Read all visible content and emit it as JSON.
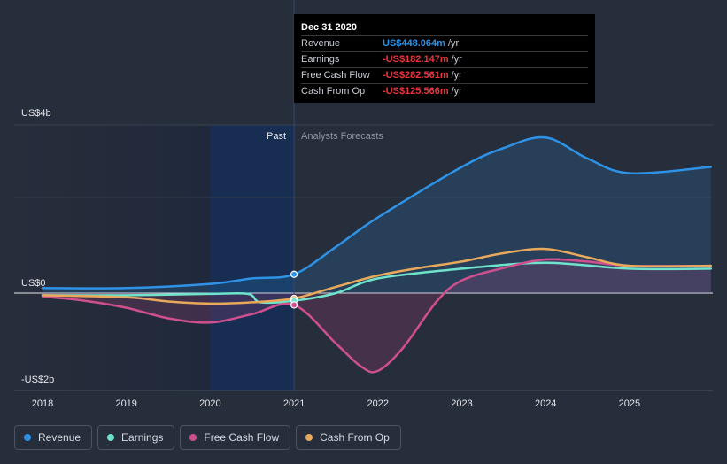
{
  "chart_data": {
    "type": "line",
    "title": "",
    "xlabel": "",
    "ylabel": "",
    "x_ticks": [
      "2018",
      "2019",
      "2020",
      "2021",
      "2022",
      "2023",
      "2024",
      "2025"
    ],
    "y_ticks": [
      "US$4b",
      "US$0",
      "-US$2b"
    ],
    "xlim": [
      2018,
      2025.97
    ],
    "ylim": [
      -2.3,
      4.0
    ],
    "past_label": "Past",
    "forecast_label": "Analysts Forecasts",
    "past_end": 2021,
    "highlight_start": 2020,
    "series": [
      {
        "name": "Revenue",
        "color": "#2e93e6",
        "fill": true,
        "points": [
          [
            2018,
            0.12
          ],
          [
            2019,
            0.12
          ],
          [
            2020,
            0.22
          ],
          [
            2020.5,
            0.35
          ],
          [
            2021,
            0.448
          ],
          [
            2021.5,
            1.1
          ],
          [
            2022,
            1.8
          ],
          [
            2023,
            3.0
          ],
          [
            2023.5,
            3.45
          ],
          [
            2024,
            3.7
          ],
          [
            2024.5,
            3.2
          ],
          [
            2025,
            2.85
          ],
          [
            2025.97,
            3.0
          ]
        ]
      },
      {
        "name": "Earnings",
        "color": "#6fe3cc",
        "fill": false,
        "points": [
          [
            2018,
            -0.05
          ],
          [
            2019,
            -0.05
          ],
          [
            2020,
            -0.02
          ],
          [
            2020.45,
            -0.02
          ],
          [
            2020.6,
            -0.22
          ],
          [
            2021,
            -0.182
          ],
          [
            2021.5,
            0.0
          ],
          [
            2022,
            0.35
          ],
          [
            2023,
            0.58
          ],
          [
            2024,
            0.72
          ],
          [
            2025,
            0.58
          ],
          [
            2025.97,
            0.58
          ]
        ]
      },
      {
        "name": "Free Cash Flow",
        "color": "#d04f8f",
        "fill": true,
        "points": [
          [
            2018,
            -0.08
          ],
          [
            2018.5,
            -0.18
          ],
          [
            2019,
            -0.35
          ],
          [
            2019.5,
            -0.6
          ],
          [
            2020,
            -0.7
          ],
          [
            2020.5,
            -0.5
          ],
          [
            2021,
            -0.283
          ],
          [
            2021.5,
            -1.2
          ],
          [
            2021.8,
            -1.75
          ],
          [
            2022,
            -1.85
          ],
          [
            2022.3,
            -1.3
          ],
          [
            2022.7,
            -0.2
          ],
          [
            2023,
            0.3
          ],
          [
            2023.5,
            0.6
          ],
          [
            2024,
            0.8
          ],
          [
            2024.5,
            0.75
          ],
          [
            2025,
            0.65
          ],
          [
            2025.97,
            0.65
          ]
        ]
      },
      {
        "name": "Cash From Op",
        "color": "#e9a95c",
        "fill": false,
        "points": [
          [
            2018,
            -0.05
          ],
          [
            2019,
            -0.1
          ],
          [
            2019.5,
            -0.2
          ],
          [
            2020,
            -0.25
          ],
          [
            2020.5,
            -0.22
          ],
          [
            2021,
            -0.126
          ],
          [
            2021.5,
            0.15
          ],
          [
            2022,
            0.42
          ],
          [
            2022.5,
            0.6
          ],
          [
            2023,
            0.75
          ],
          [
            2023.5,
            0.95
          ],
          [
            2024,
            1.05
          ],
          [
            2024.5,
            0.85
          ],
          [
            2025,
            0.65
          ],
          [
            2025.97,
            0.65
          ]
        ]
      }
    ],
    "markers": [
      {
        "series": "Revenue",
        "x": 2021,
        "y": 0.448
      },
      {
        "series": "Cash From Op",
        "x": 2021,
        "y": -0.126
      },
      {
        "series": "Earnings",
        "x": 2021,
        "y": -0.182
      },
      {
        "series": "Free Cash Flow",
        "x": 2021,
        "y": -0.283
      }
    ]
  },
  "tooltip": {
    "date": "Dec 31 2020",
    "rows": [
      {
        "label": "Revenue",
        "value": "US$448.064m",
        "unit": "/yr",
        "color": "#2e93e6"
      },
      {
        "label": "Earnings",
        "value": "-US$182.147m",
        "unit": "/yr",
        "color": "#e8353e"
      },
      {
        "label": "Free Cash Flow",
        "value": "-US$282.561m",
        "unit": "/yr",
        "color": "#e8353e"
      },
      {
        "label": "Cash From Op",
        "value": "-US$125.566m",
        "unit": "/yr",
        "color": "#e8353e"
      }
    ]
  },
  "legend": [
    {
      "label": "Revenue",
      "color": "#2e93e6"
    },
    {
      "label": "Earnings",
      "color": "#6fe3cc"
    },
    {
      "label": "Free Cash Flow",
      "color": "#d04f8f"
    },
    {
      "label": "Cash From Op",
      "color": "#e9a95c"
    }
  ]
}
